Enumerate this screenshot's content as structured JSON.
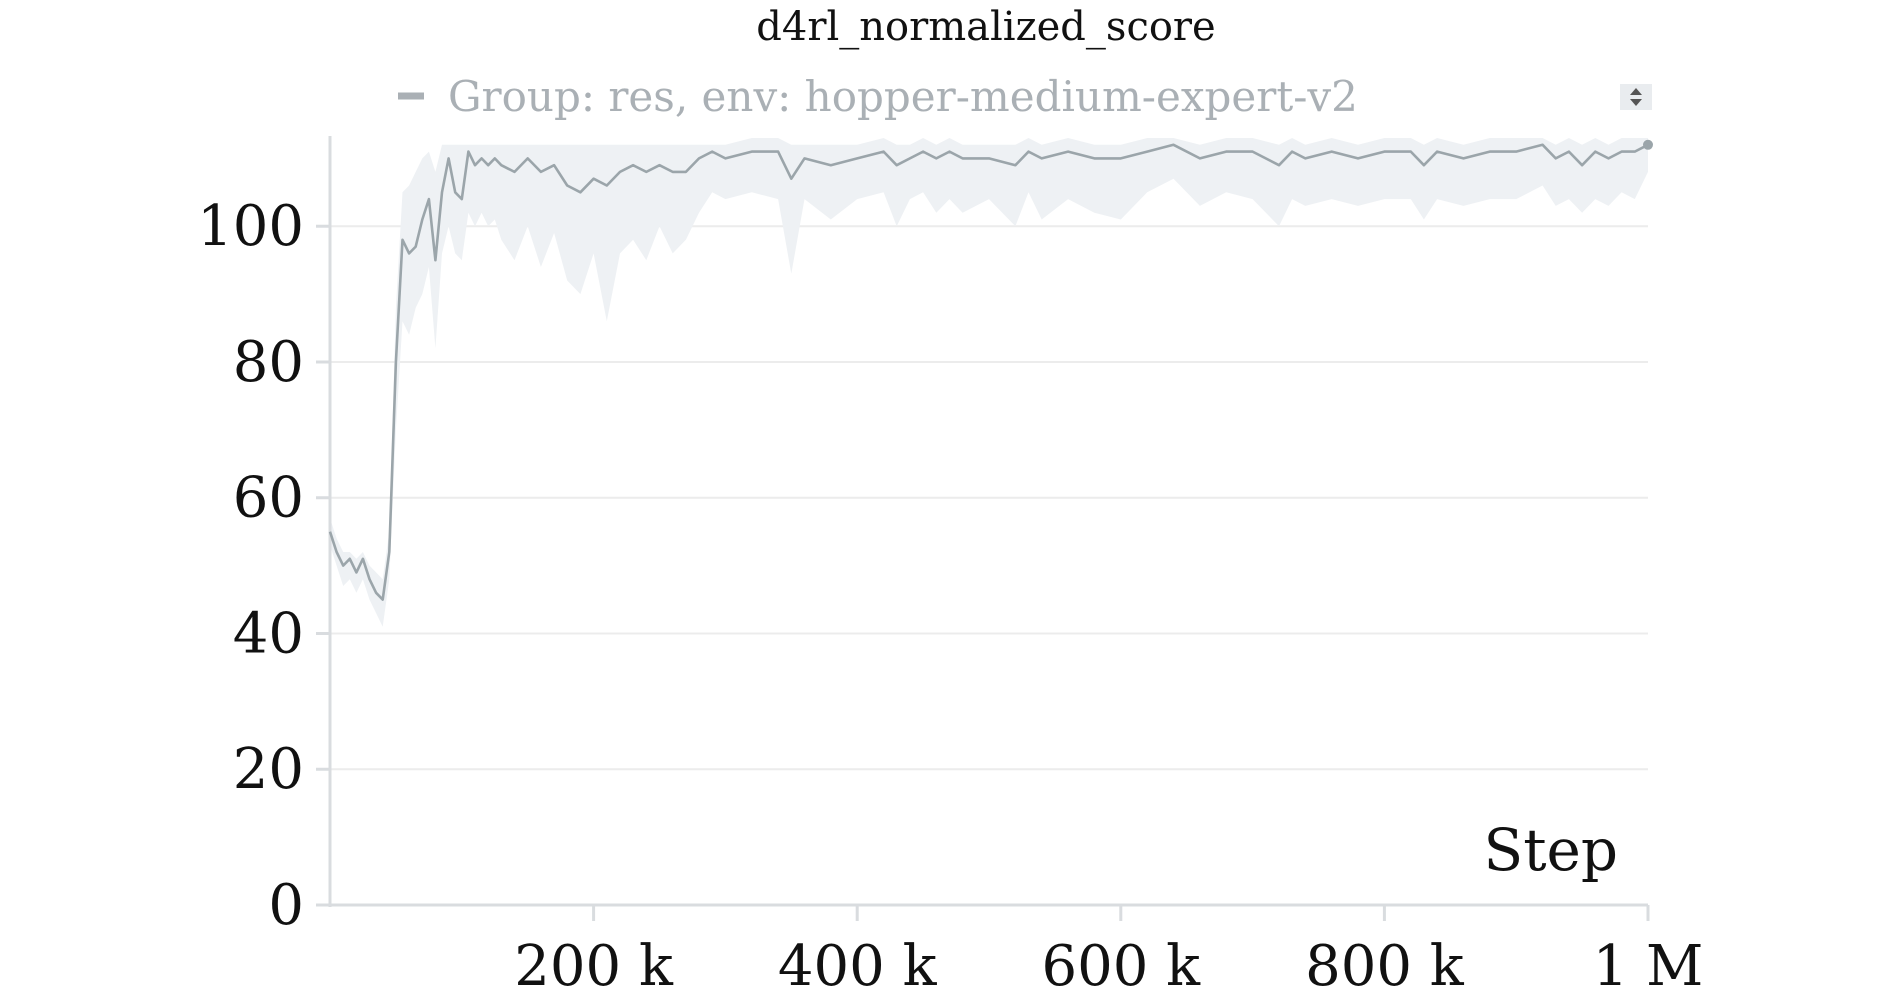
{
  "chart_data": {
    "type": "line",
    "title": "d4rl_normalized_score",
    "xlabel": "Step",
    "ylabel": "",
    "xlim": [
      0,
      1000000
    ],
    "ylim": [
      0,
      113
    ],
    "grid": true,
    "legend_position": "top-center",
    "x_ticks": [
      200000,
      400000,
      600000,
      800000,
      1000000
    ],
    "x_tick_labels": [
      "200 k",
      "400 k",
      "600 k",
      "800 k",
      "1 M"
    ],
    "y_ticks": [
      0,
      20,
      40,
      60,
      80,
      100
    ],
    "y_tick_labels": [
      "0",
      "20",
      "40",
      "60",
      "80",
      "100"
    ],
    "series": [
      {
        "name": "Group: res, env: hopper-medium-expert-v2",
        "color": "#9ba5aa",
        "band_color": "#eef1f4",
        "x": [
          0,
          5000,
          10000,
          15000,
          20000,
          25000,
          30000,
          35000,
          40000,
          45000,
          50000,
          55000,
          60000,
          65000,
          70000,
          75000,
          80000,
          85000,
          90000,
          95000,
          100000,
          105000,
          110000,
          115000,
          120000,
          125000,
          130000,
          140000,
          150000,
          160000,
          170000,
          180000,
          190000,
          200000,
          210000,
          220000,
          230000,
          240000,
          250000,
          260000,
          270000,
          280000,
          290000,
          300000,
          320000,
          340000,
          350000,
          360000,
          380000,
          400000,
          420000,
          430000,
          440000,
          450000,
          460000,
          470000,
          480000,
          500000,
          520000,
          530000,
          540000,
          560000,
          580000,
          600000,
          620000,
          640000,
          660000,
          680000,
          700000,
          720000,
          730000,
          740000,
          760000,
          780000,
          800000,
          820000,
          830000,
          840000,
          860000,
          880000,
          900000,
          920000,
          930000,
          940000,
          950000,
          960000,
          970000,
          980000,
          990000,
          1000000
        ],
        "y": [
          55,
          52,
          50,
          51,
          49,
          51,
          48,
          46,
          45,
          52,
          80,
          98,
          96,
          97,
          101,
          104,
          95,
          105,
          110,
          105,
          104,
          111,
          109,
          110,
          109,
          110,
          109,
          108,
          110,
          108,
          109,
          106,
          105,
          107,
          106,
          108,
          109,
          108,
          109,
          108,
          108,
          110,
          111,
          110,
          111,
          111,
          107,
          110,
          109,
          110,
          111,
          109,
          110,
          111,
          110,
          111,
          110,
          110,
          109,
          111,
          110,
          111,
          110,
          110,
          111,
          112,
          110,
          111,
          111,
          109,
          111,
          110,
          111,
          110,
          111,
          111,
          109,
          111,
          110,
          111,
          111,
          112,
          110,
          111,
          109,
          111,
          110,
          111,
          111,
          112
        ],
        "upper": [
          57,
          54,
          52,
          52,
          51,
          52,
          50,
          49,
          48,
          55,
          88,
          105,
          106,
          108,
          110,
          111,
          108,
          112,
          112,
          112,
          112,
          112,
          112,
          112,
          112,
          112,
          112,
          112,
          112,
          112,
          112,
          112,
          112,
          112,
          112,
          112,
          112,
          112,
          112,
          112,
          112,
          112,
          112,
          112,
          113,
          113,
          112,
          112,
          112,
          112,
          113,
          112,
          112,
          113,
          112,
          113,
          112,
          112,
          112,
          113,
          112,
          113,
          112,
          112,
          113,
          113,
          112,
          113,
          113,
          112,
          113,
          112,
          113,
          112,
          113,
          113,
          112,
          113,
          112,
          113,
          113,
          113,
          112,
          113,
          112,
          113,
          112,
          113,
          113,
          113
        ],
        "lower": [
          53,
          50,
          47,
          48,
          46,
          48,
          45,
          43,
          41,
          48,
          70,
          86,
          84,
          88,
          90,
          94,
          82,
          96,
          100,
          96,
          95,
          102,
          100,
          102,
          100,
          101,
          98,
          95,
          100,
          94,
          99,
          92,
          90,
          96,
          86,
          96,
          98,
          95,
          100,
          96,
          98,
          102,
          105,
          104,
          105,
          104,
          93,
          104,
          101,
          104,
          105,
          100,
          104,
          105,
          102,
          104,
          102,
          104,
          100,
          105,
          101,
          104,
          102,
          101,
          105,
          107,
          103,
          105,
          104,
          100,
          104,
          103,
          104,
          103,
          104,
          104,
          101,
          104,
          103,
          104,
          104,
          106,
          103,
          104,
          102,
          104,
          103,
          105,
          104,
          108
        ]
      }
    ]
  }
}
